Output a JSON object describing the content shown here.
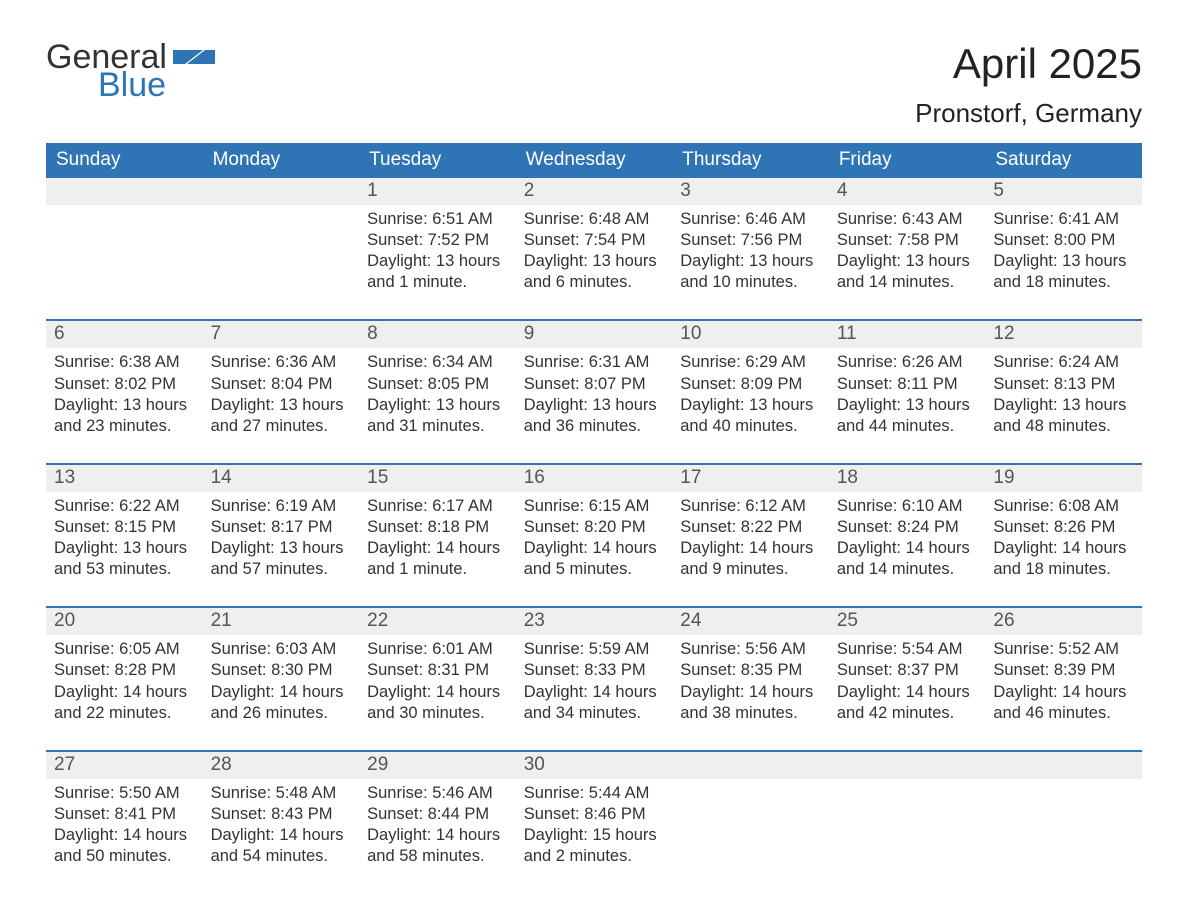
{
  "logo": {
    "word1": "General",
    "word2": "Blue",
    "brand_color": "#2f74b5"
  },
  "title": "April 2025",
  "location": "Pronstorf, Germany",
  "columns": [
    "Sunday",
    "Monday",
    "Tuesday",
    "Wednesday",
    "Thursday",
    "Friday",
    "Saturday"
  ],
  "style": {
    "header_bg": "#2f74b5",
    "header_fg": "#ffffff",
    "daynum_bg": "#efefef",
    "row_divider": "#2f74b5",
    "body_bg": "#ffffff",
    "text_color": "#333333",
    "title_fontsize": 42,
    "location_fontsize": 26,
    "header_fontsize": 19,
    "cell_fontsize": 16.5
  },
  "weeks": [
    [
      null,
      null,
      {
        "n": "1",
        "sunrise": "Sunrise: 6:51 AM",
        "sunset": "Sunset: 7:52 PM",
        "d1": "Daylight: 13 hours",
        "d2": "and 1 minute."
      },
      {
        "n": "2",
        "sunrise": "Sunrise: 6:48 AM",
        "sunset": "Sunset: 7:54 PM",
        "d1": "Daylight: 13 hours",
        "d2": "and 6 minutes."
      },
      {
        "n": "3",
        "sunrise": "Sunrise: 6:46 AM",
        "sunset": "Sunset: 7:56 PM",
        "d1": "Daylight: 13 hours",
        "d2": "and 10 minutes."
      },
      {
        "n": "4",
        "sunrise": "Sunrise: 6:43 AM",
        "sunset": "Sunset: 7:58 PM",
        "d1": "Daylight: 13 hours",
        "d2": "and 14 minutes."
      },
      {
        "n": "5",
        "sunrise": "Sunrise: 6:41 AM",
        "sunset": "Sunset: 8:00 PM",
        "d1": "Daylight: 13 hours",
        "d2": "and 18 minutes."
      }
    ],
    [
      {
        "n": "6",
        "sunrise": "Sunrise: 6:38 AM",
        "sunset": "Sunset: 8:02 PM",
        "d1": "Daylight: 13 hours",
        "d2": "and 23 minutes."
      },
      {
        "n": "7",
        "sunrise": "Sunrise: 6:36 AM",
        "sunset": "Sunset: 8:04 PM",
        "d1": "Daylight: 13 hours",
        "d2": "and 27 minutes."
      },
      {
        "n": "8",
        "sunrise": "Sunrise: 6:34 AM",
        "sunset": "Sunset: 8:05 PM",
        "d1": "Daylight: 13 hours",
        "d2": "and 31 minutes."
      },
      {
        "n": "9",
        "sunrise": "Sunrise: 6:31 AM",
        "sunset": "Sunset: 8:07 PM",
        "d1": "Daylight: 13 hours",
        "d2": "and 36 minutes."
      },
      {
        "n": "10",
        "sunrise": "Sunrise: 6:29 AM",
        "sunset": "Sunset: 8:09 PM",
        "d1": "Daylight: 13 hours",
        "d2": "and 40 minutes."
      },
      {
        "n": "11",
        "sunrise": "Sunrise: 6:26 AM",
        "sunset": "Sunset: 8:11 PM",
        "d1": "Daylight: 13 hours",
        "d2": "and 44 minutes."
      },
      {
        "n": "12",
        "sunrise": "Sunrise: 6:24 AM",
        "sunset": "Sunset: 8:13 PM",
        "d1": "Daylight: 13 hours",
        "d2": "and 48 minutes."
      }
    ],
    [
      {
        "n": "13",
        "sunrise": "Sunrise: 6:22 AM",
        "sunset": "Sunset: 8:15 PM",
        "d1": "Daylight: 13 hours",
        "d2": "and 53 minutes."
      },
      {
        "n": "14",
        "sunrise": "Sunrise: 6:19 AM",
        "sunset": "Sunset: 8:17 PM",
        "d1": "Daylight: 13 hours",
        "d2": "and 57 minutes."
      },
      {
        "n": "15",
        "sunrise": "Sunrise: 6:17 AM",
        "sunset": "Sunset: 8:18 PM",
        "d1": "Daylight: 14 hours",
        "d2": "and 1 minute."
      },
      {
        "n": "16",
        "sunrise": "Sunrise: 6:15 AM",
        "sunset": "Sunset: 8:20 PM",
        "d1": "Daylight: 14 hours",
        "d2": "and 5 minutes."
      },
      {
        "n": "17",
        "sunrise": "Sunrise: 6:12 AM",
        "sunset": "Sunset: 8:22 PM",
        "d1": "Daylight: 14 hours",
        "d2": "and 9 minutes."
      },
      {
        "n": "18",
        "sunrise": "Sunrise: 6:10 AM",
        "sunset": "Sunset: 8:24 PM",
        "d1": "Daylight: 14 hours",
        "d2": "and 14 minutes."
      },
      {
        "n": "19",
        "sunrise": "Sunrise: 6:08 AM",
        "sunset": "Sunset: 8:26 PM",
        "d1": "Daylight: 14 hours",
        "d2": "and 18 minutes."
      }
    ],
    [
      {
        "n": "20",
        "sunrise": "Sunrise: 6:05 AM",
        "sunset": "Sunset: 8:28 PM",
        "d1": "Daylight: 14 hours",
        "d2": "and 22 minutes."
      },
      {
        "n": "21",
        "sunrise": "Sunrise: 6:03 AM",
        "sunset": "Sunset: 8:30 PM",
        "d1": "Daylight: 14 hours",
        "d2": "and 26 minutes."
      },
      {
        "n": "22",
        "sunrise": "Sunrise: 6:01 AM",
        "sunset": "Sunset: 8:31 PM",
        "d1": "Daylight: 14 hours",
        "d2": "and 30 minutes."
      },
      {
        "n": "23",
        "sunrise": "Sunrise: 5:59 AM",
        "sunset": "Sunset: 8:33 PM",
        "d1": "Daylight: 14 hours",
        "d2": "and 34 minutes."
      },
      {
        "n": "24",
        "sunrise": "Sunrise: 5:56 AM",
        "sunset": "Sunset: 8:35 PM",
        "d1": "Daylight: 14 hours",
        "d2": "and 38 minutes."
      },
      {
        "n": "25",
        "sunrise": "Sunrise: 5:54 AM",
        "sunset": "Sunset: 8:37 PM",
        "d1": "Daylight: 14 hours",
        "d2": "and 42 minutes."
      },
      {
        "n": "26",
        "sunrise": "Sunrise: 5:52 AM",
        "sunset": "Sunset: 8:39 PM",
        "d1": "Daylight: 14 hours",
        "d2": "and 46 minutes."
      }
    ],
    [
      {
        "n": "27",
        "sunrise": "Sunrise: 5:50 AM",
        "sunset": "Sunset: 8:41 PM",
        "d1": "Daylight: 14 hours",
        "d2": "and 50 minutes."
      },
      {
        "n": "28",
        "sunrise": "Sunrise: 5:48 AM",
        "sunset": "Sunset: 8:43 PM",
        "d1": "Daylight: 14 hours",
        "d2": "and 54 minutes."
      },
      {
        "n": "29",
        "sunrise": "Sunrise: 5:46 AM",
        "sunset": "Sunset: 8:44 PM",
        "d1": "Daylight: 14 hours",
        "d2": "and 58 minutes."
      },
      {
        "n": "30",
        "sunrise": "Sunrise: 5:44 AM",
        "sunset": "Sunset: 8:46 PM",
        "d1": "Daylight: 15 hours",
        "d2": "and 2 minutes."
      },
      null,
      null,
      null
    ]
  ]
}
